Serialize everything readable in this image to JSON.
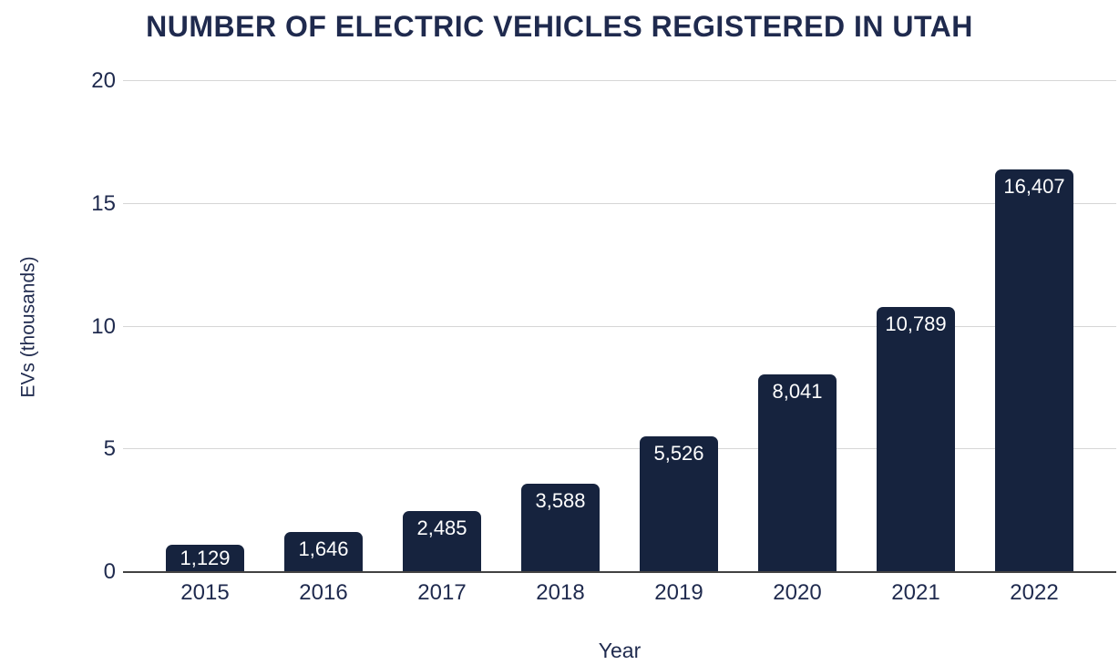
{
  "chart": {
    "title": "NUMBER OF ELECTRIC VEHICLES REGISTERED IN UTAH",
    "y_axis_label": "EVs (thousands)",
    "x_axis_label": "Year"
  },
  "chart_data": {
    "type": "bar",
    "title": "NUMBER OF ELECTRIC VEHICLES REGISTERED IN UTAH",
    "categories": [
      "2015",
      "2016",
      "2017",
      "2018",
      "2019",
      "2020",
      "2021",
      "2022"
    ],
    "values": [
      1129,
      1646,
      2485,
      3588,
      5526,
      8041,
      10789,
      16407
    ],
    "value_labels": [
      "1,129",
      "1,646",
      "2,485",
      "3,588",
      "5,526",
      "8,041",
      "10,789",
      "16,407"
    ],
    "xlabel": "Year",
    "ylabel": "EVs (thousands)",
    "y_unit": "thousands of vehicles",
    "y_ticks": [
      0,
      5,
      10,
      15,
      20
    ],
    "ylim": [
      0,
      20
    ],
    "grid": "horizontal",
    "legend": "none",
    "colors": {
      "bar": "#16233E",
      "text": "#1F2A4E",
      "gridline": "#D6D6D6",
      "axis_line": "#424242",
      "value_label": "#FFFFFF",
      "background": "#FFFFFF"
    }
  }
}
